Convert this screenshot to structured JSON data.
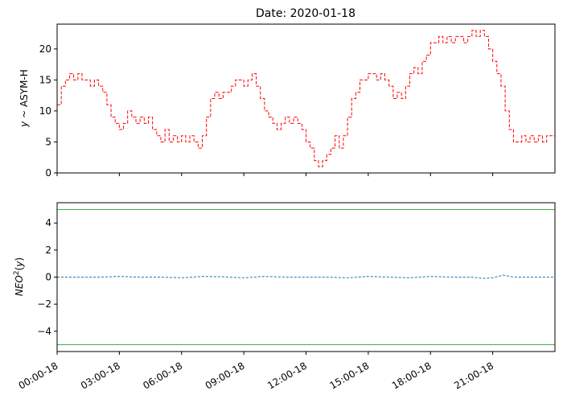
{
  "title": "Date: 2020-01-18",
  "colors": {
    "asym_line": "#ff0000",
    "neo_line": "#1f77b4",
    "threshold": "#2ca02c",
    "axes": "#000000"
  },
  "chart_data": [
    {
      "type": "line",
      "panel": "top",
      "title": "Date: 2020-01-18",
      "ylabel": "y ~ ASYM-H",
      "ylim": [
        0,
        24
      ],
      "yticks": [
        "0",
        "5",
        "10",
        "15",
        "20"
      ],
      "x_unit": "hour of day 2020-01-18",
      "xlim": [
        0,
        24
      ],
      "series": [
        {
          "style": "dashed",
          "x": [
            0,
            0.2,
            0.4,
            0.6,
            0.8,
            1.0,
            1.2,
            1.4,
            1.6,
            1.8,
            2.0,
            2.2,
            2.4,
            2.6,
            2.8,
            3.0,
            3.2,
            3.4,
            3.6,
            3.8,
            4.0,
            4.2,
            4.4,
            4.6,
            4.8,
            5.0,
            5.2,
            5.4,
            5.6,
            5.8,
            6.0,
            6.2,
            6.4,
            6.6,
            6.8,
            7.0,
            7.2,
            7.4,
            7.6,
            7.8,
            8.0,
            8.2,
            8.4,
            8.6,
            8.8,
            9.0,
            9.2,
            9.4,
            9.6,
            9.8,
            10.0,
            10.2,
            10.4,
            10.6,
            10.8,
            11.0,
            11.2,
            11.4,
            11.6,
            11.8,
            12.0,
            12.2,
            12.4,
            12.6,
            12.8,
            13.0,
            13.2,
            13.4,
            13.6,
            13.8,
            14.0,
            14.2,
            14.4,
            14.6,
            14.8,
            15.0,
            15.2,
            15.4,
            15.6,
            15.8,
            16.0,
            16.2,
            16.4,
            16.6,
            16.8,
            17.0,
            17.2,
            17.4,
            17.6,
            17.8,
            18.0,
            18.2,
            18.4,
            18.6,
            18.8,
            19.0,
            19.2,
            19.4,
            19.6,
            19.8,
            20.0,
            20.2,
            20.4,
            20.6,
            20.8,
            21.0,
            21.2,
            21.4,
            21.6,
            21.8,
            22.0,
            22.2,
            22.4,
            22.6,
            22.8,
            23.0,
            23.2,
            23.4,
            23.6,
            23.8,
            24.0
          ],
          "values": [
            11,
            14,
            15,
            16,
            15,
            16,
            15,
            15,
            14,
            15,
            14,
            13,
            11,
            9,
            8,
            7,
            8,
            10,
            9,
            8,
            9,
            8,
            9,
            7,
            6,
            5,
            7,
            5,
            6,
            5,
            6,
            5,
            6,
            5,
            4,
            6,
            9,
            12,
            13,
            12,
            13,
            13,
            14,
            15,
            15,
            14,
            15,
            16,
            14,
            12,
            10,
            9,
            8,
            7,
            8,
            9,
            8,
            9,
            8,
            7,
            5,
            4,
            2,
            1,
            2,
            3,
            4,
            6,
            4,
            6,
            9,
            12,
            13,
            15,
            15,
            16,
            16,
            15,
            16,
            15,
            14,
            12,
            13,
            12,
            14,
            16,
            17,
            16,
            18,
            19,
            21,
            21,
            22,
            21,
            22,
            21,
            22,
            22,
            21,
            22,
            23,
            22,
            23,
            22,
            20,
            18,
            16,
            14,
            10,
            7,
            5,
            5,
            6,
            5,
            6,
            5,
            6,
            5,
            6,
            6,
            7
          ]
        }
      ]
    },
    {
      "type": "line",
      "panel": "bottom",
      "ylabel": "NEO²(y)",
      "ylim": [
        -5.5,
        5.5
      ],
      "yticks": [
        "−4",
        "−2",
        "0",
        "2",
        "4"
      ],
      "x_unit": "hour of day 2020-01-18",
      "xlim": [
        0,
        24
      ],
      "xticks": [
        "00:00-18",
        "03:00-18",
        "06:00-18",
        "09:00-18",
        "12:00-18",
        "15:00-18",
        "18:00-18",
        "21:00-18"
      ],
      "series": [
        {
          "style": "dashed",
          "x": [
            0,
            1,
            2,
            3,
            4,
            5,
            6,
            7,
            8,
            9,
            10,
            11,
            12,
            13,
            14,
            15,
            16,
            17,
            18,
            19,
            20,
            20.5,
            21,
            21.5,
            22,
            23,
            24
          ],
          "values": [
            0,
            0,
            0,
            0.05,
            0,
            0,
            -0.05,
            0.05,
            0.02,
            -0.05,
            0.05,
            0,
            0,
            0,
            -0.05,
            0.05,
            0,
            -0.05,
            0.05,
            0,
            0,
            -0.1,
            -0.05,
            0.15,
            0,
            0,
            0
          ]
        },
        {
          "style": "solid",
          "role": "upper-threshold",
          "x": [
            0,
            24
          ],
          "values": [
            5,
            5
          ]
        },
        {
          "style": "solid",
          "role": "lower-threshold",
          "x": [
            0,
            24
          ],
          "values": [
            -5,
            -5
          ]
        }
      ]
    }
  ]
}
